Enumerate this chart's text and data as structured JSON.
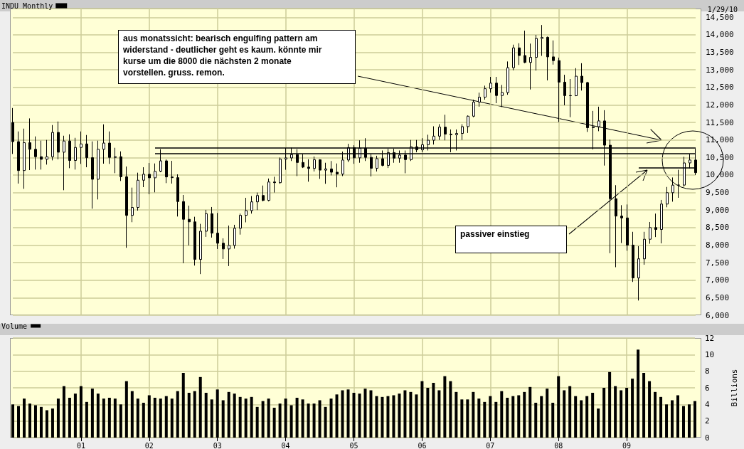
{
  "chart_data": [
    {
      "type": "candlestick",
      "subtitle": "1/29/10",
      "annotations": [
        "aus monatssicht: bearisch engulfing pattern am\nwiderstand - deutlicher geht es kaum. könnte mir\nkurse um die 8000 die nächsten 2 monate\nvorstellen. gruss. remon.",
        "passiver einstieg"
      ],
      "categories": [
        null,
        null,
        null,
        null,
        null,
        null,
        null,
        null,
        null,
        null,
        null,
        null,
        "01",
        null,
        null,
        null,
        null,
        null,
        null,
        null,
        null,
        null,
        null,
        null,
        "02",
        null,
        null,
        null,
        null,
        null,
        null,
        null,
        null,
        null,
        null,
        null,
        "03",
        null,
        null,
        null,
        null,
        null,
        null,
        null,
        null,
        null,
        null,
        null,
        "04",
        null,
        null,
        null,
        null,
        null,
        null,
        null,
        null,
        null,
        null,
        null,
        "05",
        null,
        null,
        null,
        null,
        null,
        null,
        null,
        null,
        null,
        null,
        null,
        "06",
        null,
        null,
        null,
        null,
        null,
        null,
        null,
        null,
        null,
        null,
        null,
        "07",
        null,
        null,
        null,
        null,
        null,
        null,
        null,
        null,
        null,
        null,
        null,
        "08",
        null,
        null,
        null,
        null,
        null,
        null,
        null,
        null,
        null,
        null,
        null,
        "09",
        null,
        null,
        null,
        null,
        null,
        null,
        null,
        null,
        null,
        null,
        null,
        null
      ],
      "series": [
        {
          "name": "INDU Monthly",
          "color": "#000000",
          "ohlc": [
            [
              11500,
              11912,
              10601,
              10952
            ],
            [
              10952,
              11243,
              9756,
              10128
            ],
            [
              10128,
              11324,
              9607,
              10922
            ],
            [
              10922,
              11615,
              10141,
              10734
            ],
            [
              10734,
              11101,
              10155,
              10522
            ],
            [
              10522,
              10980,
              10155,
              10448
            ],
            [
              10448,
              11000,
              10297,
              10522
            ],
            [
              10522,
              11426,
              10418,
              11215
            ],
            [
              11215,
              11527,
              10446,
              10651
            ],
            [
              10651,
              11121,
              9567,
              10971
            ],
            [
              10971,
              11162,
              10195,
              10415
            ],
            [
              10415,
              11061,
              10155,
              10787
            ],
            [
              10787,
              11243,
              10317,
              10887
            ],
            [
              10887,
              11142,
              10222,
              10495
            ],
            [
              10495,
              10959,
              9039,
              9879
            ],
            [
              9879,
              10980,
              9303,
              10735
            ],
            [
              10735,
              11446,
              10324,
              10912
            ],
            [
              10912,
              11243,
              10317,
              10502
            ],
            [
              10502,
              10777,
              10053,
              10523
            ],
            [
              10523,
              10675,
              9830,
              9950
            ],
            [
              9950,
              10243,
              7924,
              8848
            ],
            [
              8848,
              9641,
              8654,
              9075
            ],
            [
              9075,
              10067,
              8985,
              9852
            ],
            [
              9852,
              10222,
              9654,
              10022
            ],
            [
              10022,
              10344,
              9452,
              9920
            ],
            [
              9920,
              10330,
              9506,
              10106
            ],
            [
              10106,
              10736,
              10080,
              10404
            ],
            [
              10404,
              10445,
              9769,
              9946
            ],
            [
              9946,
              10405,
              9756,
              9925
            ],
            [
              9925,
              10020,
              8816,
              9243
            ],
            [
              9243,
              9431,
              7485,
              8737
            ],
            [
              8737,
              9127,
              7992,
              8664
            ],
            [
              8664,
              8809,
              7417,
              7592
            ],
            [
              7592,
              8607,
              7174,
              8397
            ],
            [
              8397,
              9006,
              8235,
              8896
            ],
            [
              8896,
              9087,
              8215,
              8342
            ],
            [
              8342,
              8918,
              7890,
              8054
            ],
            [
              8054,
              8194,
              7606,
              7891
            ],
            [
              7891,
              8559,
              7403,
              7992
            ],
            [
              7992,
              8580,
              7900,
              8480
            ],
            [
              8480,
              8900,
              8300,
              8850
            ],
            [
              8850,
              9350,
              8650,
              8985
            ],
            [
              8985,
              9400,
              8900,
              9234
            ],
            [
              9234,
              9500,
              9000,
              9416
            ],
            [
              9416,
              9700,
              9250,
              9275
            ],
            [
              9275,
              9900,
              9250,
              9801
            ],
            [
              9801,
              9950,
              9500,
              9782
            ],
            [
              9782,
              10500,
              9750,
              10454
            ],
            [
              10454,
              10770,
              10150,
              10488
            ],
            [
              10488,
              10780,
              10400,
              10584
            ],
            [
              10584,
              10740,
              9970,
              10358
            ],
            [
              10358,
              10600,
              10200,
              10226
            ],
            [
              10226,
              10450,
              9810,
              10188
            ],
            [
              10188,
              10530,
              10100,
              10435
            ],
            [
              10435,
              10450,
              9890,
              10140
            ],
            [
              10140,
              10350,
              9750,
              10174
            ],
            [
              10174,
              10400,
              9990,
              10080
            ],
            [
              10080,
              10330,
              9650,
              10027
            ],
            [
              10027,
              10670,
              9970,
              10428
            ],
            [
              10428,
              10890,
              10370,
              10783
            ],
            [
              10783,
              10850,
              10320,
              10490
            ],
            [
              10490,
              10990,
              10350,
              10766
            ],
            [
              10766,
              11050,
              10400,
              10504
            ],
            [
              10504,
              10600,
              9960,
              10193
            ],
            [
              10193,
              10550,
              10100,
              10467
            ],
            [
              10467,
              10700,
              10250,
              10275
            ],
            [
              10275,
              10750,
              10200,
              10641
            ],
            [
              10641,
              10750,
              10350,
              10482
            ],
            [
              10482,
              10700,
              10350,
              10569
            ],
            [
              10569,
              10700,
              10050,
              10440
            ],
            [
              10440,
              11000,
              10400,
              10806
            ],
            [
              10806,
              11000,
              10650,
              10718
            ],
            [
              10718,
              11050,
              10650,
              10865
            ],
            [
              10865,
              11150,
              10700,
              10993
            ],
            [
              10993,
              11390,
              10870,
              11109
            ],
            [
              11109,
              11450,
              11000,
              11367
            ],
            [
              11367,
              11720,
              10990,
              11168
            ],
            [
              11168,
              11300,
              10650,
              11150
            ],
            [
              11150,
              11300,
              10700,
              11186
            ],
            [
              11186,
              11450,
              11000,
              11381
            ],
            [
              11381,
              11700,
              11200,
              11679
            ],
            [
              11679,
              12150,
              11650,
              12081
            ],
            [
              12081,
              12350,
              11950,
              12222
            ],
            [
              12222,
              12550,
              12150,
              12463
            ],
            [
              12463,
              12800,
              12350,
              12622
            ],
            [
              12622,
              12800,
              12050,
              12269
            ],
            [
              12269,
              12570,
              11940,
              12354
            ],
            [
              12354,
              13240,
              12290,
              13063
            ],
            [
              13063,
              13720,
              12990,
              13628
            ],
            [
              13628,
              13760,
              13140,
              13409
            ],
            [
              13409,
              14120,
              13190,
              13212
            ],
            [
              13212,
              13750,
              12440,
              13358
            ],
            [
              13358,
              14000,
              12980,
              13896
            ],
            [
              13896,
              14280,
              13400,
              13930
            ],
            [
              13930,
              13950,
              12700,
              13372
            ],
            [
              13372,
              13840,
              13150,
              13265
            ],
            [
              13265,
              13350,
              11510,
              12650
            ],
            [
              12650,
              12860,
              11990,
              12266
            ],
            [
              12266,
              12740,
              11650,
              12263
            ],
            [
              12263,
              13050,
              12250,
              12820
            ],
            [
              12820,
              13190,
              12410,
              12638
            ],
            [
              12638,
              12660,
              11230,
              11350
            ],
            [
              11350,
              11830,
              10730,
              11378
            ],
            [
              11378,
              11950,
              11250,
              11544
            ],
            [
              11544,
              11850,
              10270,
              10851
            ],
            [
              10851,
              11010,
              7770,
              9325
            ],
            [
              9325,
              9710,
              7370,
              8829
            ],
            [
              8829,
              9140,
              8060,
              8776
            ],
            [
              8776,
              9160,
              7840,
              8001
            ],
            [
              8001,
              8380,
              6950,
              7063
            ],
            [
              7063,
              7970,
              6420,
              7609
            ],
            [
              7609,
              8380,
              7440,
              8168
            ],
            [
              8168,
              8660,
              8040,
              8500
            ],
            [
              8500,
              8900,
              8230,
              8447
            ],
            [
              8447,
              9290,
              8050,
              9172
            ],
            [
              9172,
              9660,
              9080,
              9496
            ],
            [
              9496,
              9930,
              9240,
              9712
            ],
            [
              9712,
              10150,
              9350,
              9713
            ],
            [
              9713,
              10520,
              9670,
              10345
            ],
            [
              10345,
              10600,
              10190,
              10428
            ],
            [
              10428,
              10760,
              10000,
              10067
            ]
          ]
        }
      ],
      "ref_lines": [
        {
          "axis": "y",
          "value": 10780
        },
        {
          "axis": "y",
          "value": 10610
        },
        {
          "axis": "y",
          "value": 10200
        }
      ],
      "ylim": [
        6000,
        14750
      ],
      "yticks": [
        {
          "value": 6000,
          "label": "6,000"
        },
        {
          "value": 6500,
          "label": "6,500"
        },
        {
          "value": 7000,
          "label": "7,000"
        },
        {
          "value": 7500,
          "label": "7,500"
        },
        {
          "value": 8000,
          "label": "8,000"
        },
        {
          "value": 8500,
          "label": "8,500"
        },
        {
          "value": 9000,
          "label": "9,000"
        },
        {
          "value": 9500,
          "label": "9,500"
        },
        {
          "value": 10000,
          "label": "10,000"
        },
        {
          "value": 10500,
          "label": "10,500"
        },
        {
          "value": 11000,
          "label": "11,000"
        },
        {
          "value": 11500,
          "label": "11,500"
        },
        {
          "value": 12000,
          "label": "12,000"
        },
        {
          "value": 12500,
          "label": "12,500"
        },
        {
          "value": 13000,
          "label": "13,000"
        },
        {
          "value": 13500,
          "label": "13,500"
        },
        {
          "value": 14000,
          "label": "14,000"
        },
        {
          "value": 14500,
          "label": "14,500"
        }
      ],
      "grid": true,
      "legend": "top left",
      "tick_labels": "y"
    },
    {
      "type": "bar",
      "ylabel": "Billions",
      "categories": [
        null,
        null,
        null,
        null,
        null,
        null,
        null,
        null,
        null,
        null,
        null,
        null,
        "01",
        null,
        null,
        null,
        null,
        null,
        null,
        null,
        null,
        null,
        null,
        null,
        "02",
        null,
        null,
        null,
        null,
        null,
        null,
        null,
        null,
        null,
        null,
        null,
        "03",
        null,
        null,
        null,
        null,
        null,
        null,
        null,
        null,
        null,
        null,
        null,
        "04",
        null,
        null,
        null,
        null,
        null,
        null,
        null,
        null,
        null,
        null,
        null,
        "05",
        null,
        null,
        null,
        null,
        null,
        null,
        null,
        null,
        null,
        null,
        null,
        "06",
        null,
        null,
        null,
        null,
        null,
        null,
        null,
        null,
        null,
        null,
        null,
        "07",
        null,
        null,
        null,
        null,
        null,
        null,
        null,
        null,
        null,
        null,
        null,
        "08",
        null,
        null,
        null,
        null,
        null,
        null,
        null,
        null,
        null,
        null,
        null,
        "09",
        null,
        null,
        null,
        null,
        null,
        null,
        null,
        null,
        null,
        null,
        null,
        null
      ],
      "series": [
        {
          "name": "Volume",
          "color": "#000000",
          "values": [
            4.0,
            3.8,
            4.7,
            4.1,
            3.9,
            3.7,
            3.3,
            3.5,
            4.7,
            6.2,
            4.8,
            5.3,
            6.2,
            4.3,
            5.9,
            5.3,
            4.7,
            4.8,
            4.7,
            4.0,
            6.8,
            5.6,
            4.7,
            4.2,
            5.1,
            4.8,
            4.7,
            5.0,
            4.7,
            5.6,
            7.8,
            5.4,
            5.6,
            7.3,
            5.4,
            4.6,
            5.8,
            4.5,
            5.5,
            5.3,
            4.9,
            4.7,
            4.9,
            3.7,
            4.4,
            4.7,
            3.6,
            4.1,
            4.7,
            3.9,
            4.8,
            4.6,
            4.1,
            4.1,
            4.5,
            3.7,
            4.7,
            5.2,
            5.7,
            5.8,
            5.4,
            5.3,
            5.9,
            5.7,
            5.0,
            4.9,
            5.0,
            5.1,
            5.3,
            5.7,
            5.5,
            5.2,
            6.8,
            6.0,
            6.6,
            5.7,
            7.4,
            6.8,
            5.5,
            4.6,
            4.6,
            5.5,
            4.7,
            4.3,
            5.0,
            4.3,
            5.6,
            4.8,
            5.0,
            5.1,
            5.5,
            6.1,
            4.2,
            5.0,
            5.9,
            4.2,
            7.4,
            5.7,
            6.2,
            5.0,
            4.5,
            5.0,
            5.4,
            3.5,
            6.0,
            7.9,
            6.2,
            5.7,
            6.0,
            7.1,
            10.6,
            7.8,
            6.8,
            5.5,
            4.9,
            4.0,
            4.5,
            5.1,
            3.8,
            4.0,
            4.4
          ]
        }
      ],
      "ylim": [
        0,
        12
      ],
      "yticks": [
        0,
        2,
        4,
        6,
        8,
        10,
        12
      ],
      "grid": true,
      "legend": "top left"
    }
  ]
}
